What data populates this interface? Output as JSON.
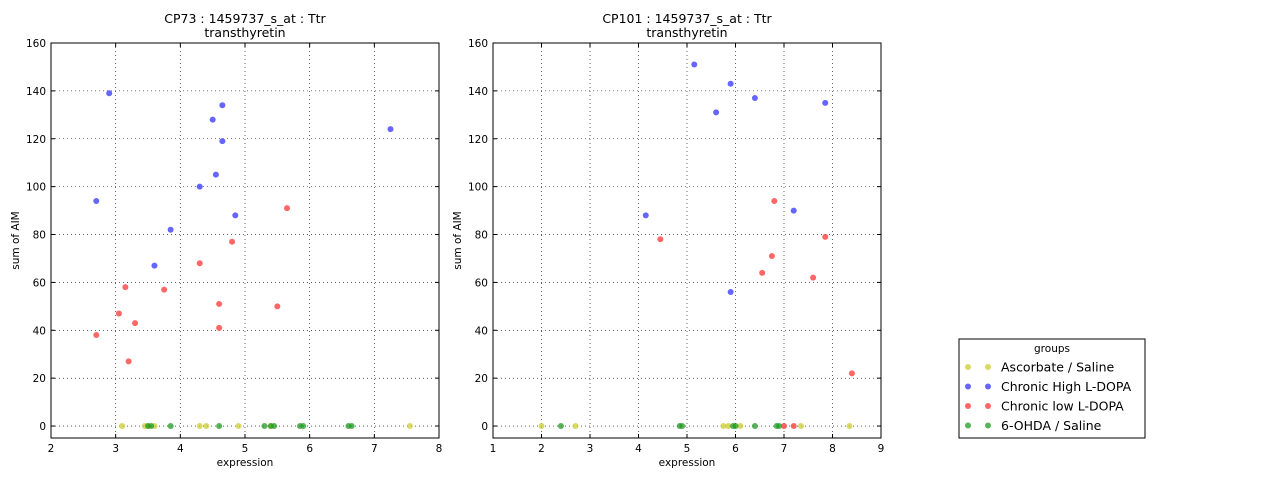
{
  "legend": {
    "title": "groups",
    "placement": "right",
    "entries": [
      {
        "label": "Ascorbate / Saline",
        "color": "#cccc33"
      },
      {
        "label": "Chronic High L-DOPA",
        "color": "#3333ff"
      },
      {
        "label": "Chronic low L-DOPA",
        "color": "#ff3333"
      },
      {
        "label": "6-OHDA / Saline",
        "color": "#229922"
      }
    ]
  },
  "chart_data": [
    {
      "type": "scatter",
      "title": "CP73 : 1459737_s_at : Ttr",
      "subtitle": "transthyretin",
      "xlabel": "expression",
      "ylabel": "sum of AIM",
      "xlim": [
        2,
        8
      ],
      "ylim": [
        -5,
        160
      ],
      "xticks": [
        2,
        3,
        4,
        5,
        6,
        7,
        8
      ],
      "yticks": [
        0,
        20,
        40,
        60,
        80,
        100,
        120,
        140,
        160
      ],
      "grid": true,
      "series": [
        {
          "name": "Ascorbate / Saline",
          "color": "#cccc33",
          "points": [
            [
              3.1,
              0
            ],
            [
              3.45,
              0
            ],
            [
              3.5,
              0
            ],
            [
              3.6,
              0
            ],
            [
              4.3,
              0
            ],
            [
              4.4,
              0
            ],
            [
              4.9,
              0
            ],
            [
              5.4,
              0
            ],
            [
              7.55,
              0
            ]
          ]
        },
        {
          "name": "Chronic High L-DOPA",
          "color": "#3333ff",
          "points": [
            [
              2.7,
              94
            ],
            [
              2.9,
              139
            ],
            [
              3.6,
              67
            ],
            [
              3.85,
              82
            ],
            [
              4.3,
              100
            ],
            [
              4.5,
              128
            ],
            [
              4.55,
              105
            ],
            [
              4.65,
              119
            ],
            [
              4.65,
              134
            ],
            [
              4.85,
              88
            ],
            [
              7.25,
              124
            ]
          ]
        },
        {
          "name": "Chronic low L-DOPA",
          "color": "#ff3333",
          "points": [
            [
              2.7,
              38
            ],
            [
              3.05,
              47
            ],
            [
              3.15,
              58
            ],
            [
              3.2,
              27
            ],
            [
              3.3,
              43
            ],
            [
              3.75,
              57
            ],
            [
              4.3,
              68
            ],
            [
              4.6,
              51
            ],
            [
              4.6,
              41
            ],
            [
              4.8,
              77
            ],
            [
              5.5,
              50
            ],
            [
              5.65,
              91
            ]
          ]
        },
        {
          "name": "6-OHDA / Saline",
          "color": "#229922",
          "points": [
            [
              3.5,
              0
            ],
            [
              3.55,
              0
            ],
            [
              3.85,
              0
            ],
            [
              4.6,
              0
            ],
            [
              5.3,
              0
            ],
            [
              5.4,
              0
            ],
            [
              5.45,
              0
            ],
            [
              5.85,
              0
            ],
            [
              5.9,
              0
            ],
            [
              6.6,
              0
            ],
            [
              6.65,
              0
            ]
          ]
        }
      ]
    },
    {
      "type": "scatter",
      "title": "CP101 : 1459737_s_at : Ttr",
      "subtitle": "transthyretin",
      "xlabel": "expression",
      "ylabel": "sum of AIM",
      "xlim": [
        1,
        9
      ],
      "ylim": [
        -5,
        160
      ],
      "xticks": [
        1,
        2,
        3,
        4,
        5,
        6,
        7,
        8,
        9
      ],
      "yticks": [
        0,
        20,
        40,
        60,
        80,
        100,
        120,
        140,
        160
      ],
      "grid": true,
      "series": [
        {
          "name": "Ascorbate / Saline",
          "color": "#cccc33",
          "points": [
            [
              2.0,
              0
            ],
            [
              2.7,
              0
            ],
            [
              5.75,
              0
            ],
            [
              5.85,
              0
            ],
            [
              6.1,
              0
            ],
            [
              7.35,
              0
            ],
            [
              8.35,
              0
            ]
          ]
        },
        {
          "name": "Chronic High L-DOPA",
          "color": "#3333ff",
          "points": [
            [
              4.15,
              88
            ],
            [
              5.15,
              151
            ],
            [
              5.6,
              131
            ],
            [
              5.9,
              143
            ],
            [
              5.9,
              56
            ],
            [
              6.4,
              137
            ],
            [
              7.2,
              90
            ],
            [
              7.85,
              135
            ]
          ]
        },
        {
          "name": "Chronic low L-DOPA",
          "color": "#ff3333",
          "points": [
            [
              4.45,
              78
            ],
            [
              6.55,
              64
            ],
            [
              6.75,
              71
            ],
            [
              6.8,
              94
            ],
            [
              7.0,
              0
            ],
            [
              7.2,
              0
            ],
            [
              7.6,
              62
            ],
            [
              7.85,
              79
            ],
            [
              8.4,
              22
            ]
          ]
        },
        {
          "name": "6-OHDA / Saline",
          "color": "#229922",
          "points": [
            [
              2.4,
              0
            ],
            [
              4.85,
              0
            ],
            [
              4.9,
              0
            ],
            [
              5.95,
              0
            ],
            [
              6.0,
              0
            ],
            [
              6.4,
              0
            ],
            [
              6.85,
              0
            ],
            [
              6.9,
              0
            ]
          ]
        }
      ]
    }
  ]
}
